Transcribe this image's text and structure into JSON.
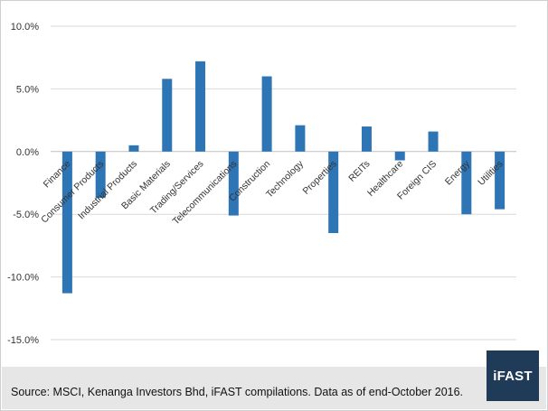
{
  "chart_data": {
    "type": "bar",
    "categories": [
      "Finance",
      "Consumer Products",
      "Industrial Products",
      "Basic Materials",
      "Trading/Services",
      "Telecommunications",
      "Construction",
      "Technology",
      "Properties",
      "REITs",
      "Healthcare",
      "Foreign CIS",
      "Energy",
      "Utilities"
    ],
    "values": [
      -11.3,
      -3.7,
      0.5,
      5.8,
      7.2,
      -5.1,
      6.0,
      2.1,
      -6.5,
      2.0,
      -0.7,
      1.6,
      -5.0,
      -4.6
    ],
    "ylim": [
      -15,
      10
    ],
    "yticks": [
      10,
      5,
      0,
      -5,
      -10,
      -15
    ],
    "ytick_labels": [
      "10.0%",
      "5.0%",
      "0.0%",
      "-5.0%",
      "-10.0%",
      "-15.0%"
    ],
    "grid": true,
    "bar_color": "#2e75b6"
  },
  "footer": {
    "source_text": "Source: MSCI, Kenanga Investors Bhd, iFAST compilations. Data as of end-October 2016.",
    "logo_text": "iFAST",
    "logo_color": "#1f3b57"
  }
}
